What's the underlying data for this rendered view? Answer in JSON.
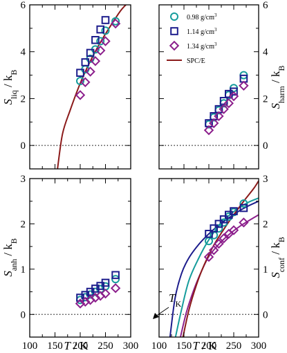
{
  "chart_data": [
    {
      "type": "scatter",
      "panel": "S_liq",
      "ylabel": "S_liq / k_B",
      "xlabel": "",
      "xlim": [
        100,
        300
      ],
      "ylim": [
        -1,
        6
      ],
      "xticks": [
        100,
        150,
        200,
        250,
        300
      ],
      "yticks": [
        0,
        2,
        4,
        6
      ],
      "y_axis_side": "left",
      "reference_line": {
        "y": 0,
        "style": "dotted"
      },
      "series": [
        {
          "name": "0.98 g/cm3",
          "marker": "circle",
          "color": "#159c9c",
          "x": [
            200,
            210,
            220,
            230,
            240,
            250,
            270
          ],
          "y": [
            2.75,
            3.25,
            3.7,
            4.1,
            4.45,
            4.9,
            5.3
          ]
        },
        {
          "name": "1.14 g/cm3",
          "marker": "square",
          "color": "#1c1c8c",
          "x": [
            200,
            210,
            220,
            230,
            240,
            250
          ],
          "y": [
            3.1,
            3.55,
            3.95,
            4.5,
            4.95,
            5.35
          ]
        },
        {
          "name": "1.34 g/cm3",
          "marker": "diamond",
          "color": "#8c1f8c",
          "x": [
            200,
            210,
            220,
            230,
            240,
            250,
            270
          ],
          "y": [
            2.15,
            2.7,
            3.15,
            3.6,
            4.05,
            4.45,
            5.2
          ]
        },
        {
          "name": "SPC/E",
          "marker": "line",
          "color": "#8b1a1a",
          "x": [
            155,
            165,
            180,
            200,
            220,
            240,
            260,
            280,
            295
          ],
          "y": [
            -1.0,
            0.5,
            1.5,
            2.65,
            3.6,
            4.4,
            5.1,
            5.75,
            6.1
          ]
        }
      ]
    },
    {
      "type": "scatter",
      "panel": "S_harm",
      "ylabel": "S_harm / k_B",
      "xlabel": "",
      "xlim": [
        100,
        300
      ],
      "ylim": [
        -1,
        6
      ],
      "xticks": [
        100,
        150,
        200,
        250,
        300
      ],
      "yticks": [
        0,
        2,
        4,
        6
      ],
      "y_axis_side": "right",
      "legend_position": "upper-left",
      "reference_line": {
        "y": 0,
        "style": "dotted"
      },
      "series": [
        {
          "name": "0.98 g/cm3",
          "marker": "circle",
          "color": "#159c9c",
          "x": [
            200,
            210,
            220,
            230,
            240,
            250,
            270
          ],
          "y": [
            0.9,
            1.2,
            1.5,
            1.8,
            2.15,
            2.45,
            3.0
          ]
        },
        {
          "name": "1.14 g/cm3",
          "marker": "square",
          "color": "#1c1c8c",
          "x": [
            200,
            210,
            220,
            230,
            240,
            250,
            270
          ],
          "y": [
            0.95,
            1.25,
            1.55,
            1.9,
            2.2,
            2.3,
            2.85
          ]
        },
        {
          "name": "1.34 g/cm3",
          "marker": "diamond",
          "color": "#8c1f8c",
          "x": [
            200,
            210,
            220,
            230,
            240,
            250,
            270
          ],
          "y": [
            0.65,
            0.95,
            1.25,
            1.55,
            1.8,
            2.1,
            2.55
          ]
        }
      ]
    },
    {
      "type": "scatter",
      "panel": "S_anh",
      "ylabel": "S_anh / k_B",
      "xlabel": "T / K",
      "xlim": [
        100,
        300
      ],
      "ylim": [
        -0.5,
        3
      ],
      "xticks": [
        100,
        150,
        200,
        250,
        300
      ],
      "yticks": [
        0,
        1,
        2,
        3
      ],
      "y_axis_side": "left",
      "reference_line": {
        "y": 0,
        "style": "dotted"
      },
      "series": [
        {
          "name": "0.98 g/cm3",
          "marker": "circle",
          "color": "#159c9c",
          "x": [
            200,
            210,
            220,
            230,
            240,
            250,
            270
          ],
          "y": [
            0.32,
            0.38,
            0.44,
            0.5,
            0.56,
            0.62,
            0.78
          ]
        },
        {
          "name": "1.14 g/cm3",
          "marker": "square",
          "color": "#1c1c8c",
          "x": [
            200,
            210,
            220,
            230,
            240,
            250,
            270
          ],
          "y": [
            0.37,
            0.43,
            0.5,
            0.57,
            0.63,
            0.7,
            0.87
          ]
        },
        {
          "name": "1.34 g/cm3",
          "marker": "diamond",
          "color": "#8c1f8c",
          "x": [
            200,
            210,
            220,
            230,
            240,
            250,
            270
          ],
          "y": [
            0.24,
            0.28,
            0.32,
            0.37,
            0.41,
            0.46,
            0.58
          ]
        }
      ]
    },
    {
      "type": "scatter",
      "panel": "S_conf",
      "ylabel": "S_conf / k_B",
      "xlabel": "T / K",
      "xlim": [
        100,
        300
      ],
      "ylim": [
        -0.5,
        3
      ],
      "xticks": [
        100,
        150,
        200,
        250,
        300
      ],
      "yticks": [
        0,
        1,
        2,
        3
      ],
      "y_axis_side": "right",
      "reference_line": {
        "y": 0,
        "style": "dotted"
      },
      "annotation": {
        "text": "T_K",
        "points_to": [
          152,
          0
        ]
      },
      "series": [
        {
          "name": "0.98 g/cm3",
          "marker": "circle",
          "color": "#159c9c",
          "x": [
            200,
            210,
            220,
            230,
            240,
            250,
            270
          ],
          "y": [
            1.62,
            1.75,
            1.9,
            2.03,
            2.16,
            2.26,
            2.45
          ]
        },
        {
          "name": "1.14 g/cm3",
          "marker": "square",
          "color": "#1c1c8c",
          "x": [
            200,
            210,
            220,
            230,
            240,
            250,
            270
          ],
          "y": [
            1.78,
            1.9,
            2.0,
            2.1,
            2.2,
            2.28,
            2.35
          ]
        },
        {
          "name": "1.34 g/cm3",
          "marker": "diamond",
          "color": "#8c1f8c",
          "x": [
            200,
            210,
            220,
            230,
            240,
            250,
            270
          ],
          "y": [
            1.27,
            1.42,
            1.56,
            1.68,
            1.78,
            1.86,
            2.03
          ]
        },
        {
          "name": "fit 0.98 g/cm3",
          "marker": "line",
          "color": "#159c9c",
          "x": [
            133,
            145,
            160,
            180,
            200,
            220,
            240,
            260,
            280,
            300
          ],
          "y": [
            -0.5,
            0.1,
            0.75,
            1.25,
            1.65,
            1.95,
            2.18,
            2.35,
            2.48,
            2.57
          ]
        },
        {
          "name": "fit 1.14 g/cm3",
          "marker": "line",
          "color": "#1c1c8c",
          "x": [
            122,
            132,
            145,
            160,
            180,
            200,
            220,
            240,
            260,
            280,
            300
          ],
          "y": [
            -0.5,
            0.35,
            0.9,
            1.25,
            1.55,
            1.78,
            1.97,
            2.13,
            2.28,
            2.4,
            2.5
          ]
        },
        {
          "name": "fit 1.34 g/cm3",
          "marker": "line",
          "color": "#8c1f8c",
          "x": [
            143,
            155,
            170,
            185,
            200,
            220,
            240,
            260,
            280,
            300
          ],
          "y": [
            -0.5,
            0.05,
            0.55,
            0.95,
            1.28,
            1.55,
            1.76,
            1.93,
            2.07,
            2.2
          ]
        },
        {
          "name": "fit SPC/E",
          "marker": "line",
          "color": "#8b1a1a",
          "x": [
            148,
            160,
            175,
            190,
            210,
            230,
            250,
            270,
            290,
            300
          ],
          "y": [
            -0.5,
            0.1,
            0.65,
            1.08,
            1.53,
            1.88,
            2.2,
            2.5,
            2.78,
            2.95
          ]
        }
      ]
    }
  ],
  "legend": [
    {
      "label": "0.98 g/cm",
      "sup": "3",
      "marker": "circle",
      "color": "#159c9c"
    },
    {
      "label": "1.14 g/cm",
      "sup": "3",
      "marker": "square",
      "color": "#1c1c8c"
    },
    {
      "label": "1.34 g/cm",
      "sup": "3",
      "marker": "diamond",
      "color": "#8c1f8c"
    },
    {
      "label": "SPC/E",
      "sup": "",
      "marker": "line",
      "color": "#8b1a1a"
    }
  ],
  "axis_labels": {
    "S_liq": {
      "main": "S",
      "sub": "liq",
      "rest": " / k",
      "sub2": "B"
    },
    "S_harm": {
      "main": "S",
      "sub": "harm",
      "rest": " / k",
      "sub2": "B"
    },
    "S_anh": {
      "main": "S",
      "sub": "anh",
      "rest": " / k",
      "sub2": "B"
    },
    "S_conf": {
      "main": "S",
      "sub": "conf",
      "rest": " / k",
      "sub2": "B"
    },
    "x": {
      "main": "T",
      "rest": " / K"
    }
  },
  "annotation": {
    "main": "T",
    "sub": "K"
  }
}
